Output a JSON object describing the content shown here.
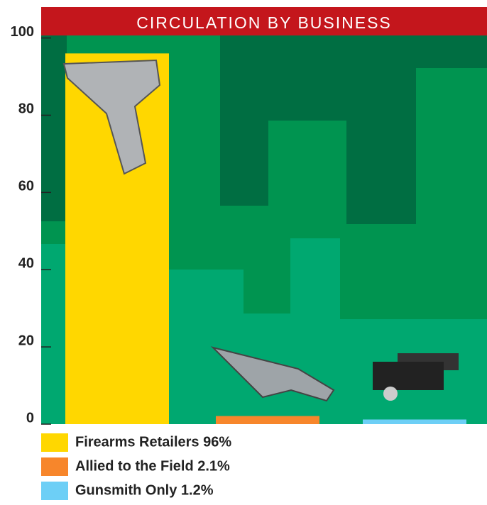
{
  "chart_data": {
    "type": "bar",
    "title": "CIRCULATION BY BUSINESS",
    "series": [
      {
        "name": "Firearms Retailers 96%",
        "color": "#ffd700",
        "values": [
          96
        ]
      },
      {
        "name": "Allied to the Field 2.1%",
        "color": "#f7862b",
        "values": [
          2.1
        ]
      },
      {
        "name": "Gunsmith Only 1.2%",
        "color": "#6dcff6",
        "values": [
          1.2
        ]
      }
    ],
    "ylim": [
      0,
      108
    ],
    "yticks": [
      0,
      20,
      40,
      60,
      80,
      100
    ],
    "legend": "bottom-left"
  }
}
